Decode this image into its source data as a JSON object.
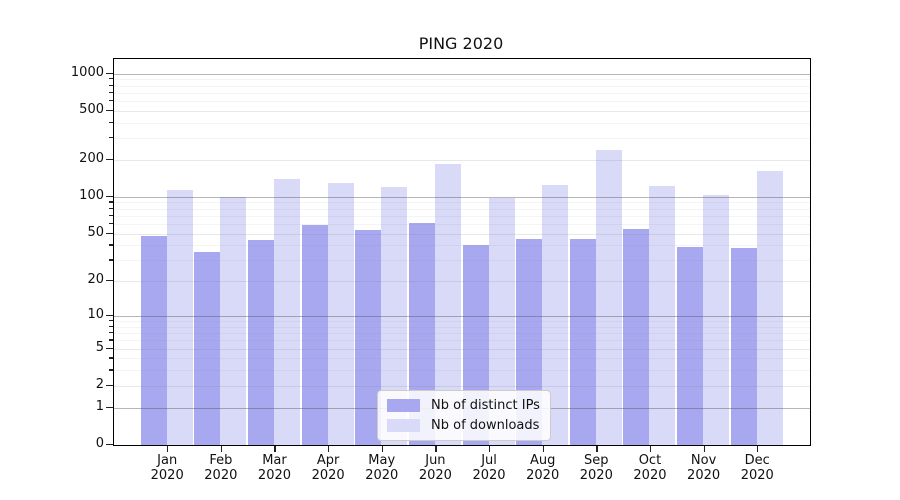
{
  "chart_data": {
    "type": "bar",
    "title": "PING 2020",
    "categories": [
      "Jan 2020",
      "Feb 2020",
      "Mar 2020",
      "Apr 2020",
      "May 2020",
      "Jun 2020",
      "Jul 2020",
      "Aug 2020",
      "Sep 2020",
      "Oct 2020",
      "Nov 2020",
      "Dec 2020"
    ],
    "series": [
      {
        "name": "Nb of distinct IPs",
        "color": "#a8a8f0",
        "values": [
          48,
          35,
          44,
          59,
          54,
          61,
          40,
          45,
          45,
          55,
          39,
          38
        ]
      },
      {
        "name": "Nb of downloads",
        "color": "#d9d9f8",
        "values": [
          113,
          100,
          141,
          129,
          120,
          184,
          98,
          126,
          240,
          123,
          104,
          162
        ]
      }
    ],
    "yscale": "log10(1+x)",
    "yticks": [
      0,
      1,
      2,
      5,
      10,
      20,
      50,
      100,
      200,
      500,
      1000
    ],
    "ytick_major": [
      1,
      10,
      100,
      1000
    ],
    "yminor": [
      3,
      4,
      6,
      7,
      8,
      9,
      30,
      40,
      60,
      70,
      80,
      90,
      300,
      400,
      600,
      700,
      800,
      900
    ],
    "ylim": [
      0,
      1300
    ],
    "grid": "horizontal",
    "legend_position": "lower-center",
    "colors": {
      "grid_major": "rgba(80,80,80,0.42)",
      "grid_mid": "rgba(128,128,128,0.18)",
      "grid_minor": "rgba(128,128,128,0.09)",
      "axis": "#000000",
      "text": "#111111"
    }
  }
}
